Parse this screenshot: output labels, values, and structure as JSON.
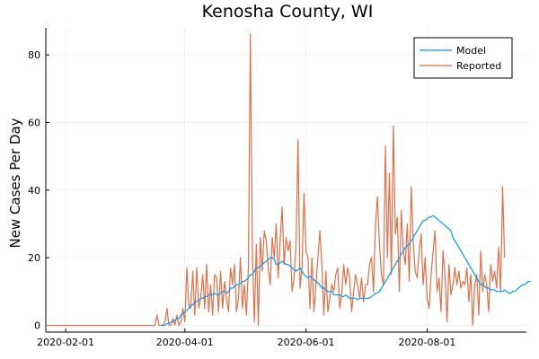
{
  "chart_data": {
    "type": "line",
    "title": "Kenosha County, WI",
    "ylabel": "New Cases Per Day",
    "xlabel": "",
    "x_range": [
      "2020-01-22",
      "2020-09-20"
    ],
    "ylim": [
      -2,
      88
    ],
    "yticks": [
      0,
      20,
      40,
      60,
      80
    ],
    "xticks": [
      "2020-02-01",
      "2020-04-01",
      "2020-06-01",
      "2020-08-01"
    ],
    "grid": true,
    "legend": "top-right",
    "colors": {
      "Model": "#009af9",
      "Reported": "#e26f46"
    },
    "series": [
      {
        "name": "Model",
        "start": "2020-03-20",
        "values": [
          0,
          0,
          0,
          0.5,
          0.5,
          1,
          1,
          1.5,
          2,
          2,
          3,
          3.5,
          4,
          4.5,
          5,
          6,
          6,
          7,
          7,
          7.5,
          8,
          8,
          8.5,
          8.5,
          9,
          9,
          9,
          9.5,
          9,
          9,
          9.5,
          10,
          10,
          9.5,
          10,
          11,
          11,
          11.5,
          12,
          12,
          12.5,
          13,
          13,
          13.5,
          14,
          15,
          15,
          16,
          17,
          17,
          17.5,
          18,
          18.5,
          19,
          19.5,
          20,
          20,
          19.5,
          18,
          18,
          18.5,
          19,
          18.5,
          18,
          18,
          17.5,
          17,
          16.5,
          16,
          16.5,
          17,
          16,
          15,
          14.5,
          14,
          14.5,
          14,
          13.5,
          13,
          12.5,
          12,
          11,
          11,
          10.5,
          10,
          10,
          10,
          9,
          9,
          9,
          9,
          8.5,
          8.5,
          9,
          8.5,
          8,
          8,
          8,
          8,
          7.5,
          8,
          8,
          8,
          8,
          8,
          8,
          8.5,
          9,
          9.5,
          9.5,
          10,
          11,
          12,
          13,
          14,
          15,
          16,
          17,
          18,
          19,
          20,
          21,
          22,
          23,
          23.5,
          24,
          25,
          26,
          27,
          28,
          29,
          30,
          31,
          31,
          31.5,
          32,
          32,
          32.5,
          32,
          31.5,
          31,
          30.5,
          30,
          29.5,
          29,
          28.5,
          28,
          26,
          25,
          24,
          23,
          22,
          21,
          20,
          19,
          18,
          17,
          16,
          15,
          14,
          13,
          12,
          12,
          11.5,
          11,
          11,
          10.5,
          10.5,
          10.5,
          10,
          10,
          10,
          10,
          10.5,
          10,
          9.5,
          9.5,
          10,
          10,
          10.5,
          11,
          11.5,
          12,
          12,
          12.5,
          13,
          13
        ]
      },
      {
        "name": "Reported",
        "start": "2020-01-22",
        "values": [
          0,
          0,
          0,
          0,
          0,
          0,
          0,
          0,
          0,
          0,
          0,
          0,
          0,
          0,
          0,
          0,
          0,
          0,
          0,
          0,
          0,
          0,
          0,
          0,
          0,
          0,
          0,
          0,
          0,
          0,
          0,
          0,
          0,
          0,
          0,
          0,
          0,
          0,
          0,
          0,
          0,
          0,
          0,
          0,
          0,
          0,
          0,
          0,
          0,
          0,
          0,
          0,
          0,
          0,
          0,
          0,
          3,
          0,
          0,
          0,
          1,
          5,
          0,
          0,
          2,
          0,
          3,
          0,
          1,
          5,
          1,
          17,
          6,
          5,
          16,
          3,
          17,
          5,
          8,
          15,
          5,
          18,
          4,
          12,
          3,
          15,
          14,
          4,
          16,
          5,
          13,
          8,
          4,
          17,
          12,
          18,
          4,
          8,
          20,
          5,
          12,
          3,
          17,
          86,
          22,
          1,
          24,
          0,
          26,
          16,
          28,
          25,
          17,
          12,
          26,
          20,
          30,
          14,
          25,
          35,
          18,
          26,
          22,
          25,
          10,
          14,
          24,
          55,
          11,
          17,
          39,
          22,
          20,
          5,
          20,
          4,
          12,
          20,
          28,
          18,
          3,
          16,
          4,
          8,
          12,
          10,
          15,
          17,
          5,
          9,
          18,
          12,
          17,
          14,
          4,
          10,
          15,
          12,
          8,
          14,
          7,
          12,
          12,
          18,
          20,
          10,
          30,
          38,
          24,
          15,
          12,
          53,
          20,
          45,
          15,
          59,
          27,
          32,
          10,
          34,
          22,
          18,
          30,
          13,
          41,
          25,
          16,
          14,
          22,
          27,
          12,
          20,
          8,
          5,
          15,
          22,
          28,
          10,
          14,
          4,
          22,
          15,
          1,
          18,
          9,
          12,
          17,
          12,
          16,
          11,
          13,
          12,
          17,
          7,
          15,
          0,
          12,
          15,
          3,
          22,
          10,
          15,
          12,
          4,
          18,
          13,
          16,
          11,
          23,
          10,
          41,
          20
        ]
      }
    ]
  }
}
